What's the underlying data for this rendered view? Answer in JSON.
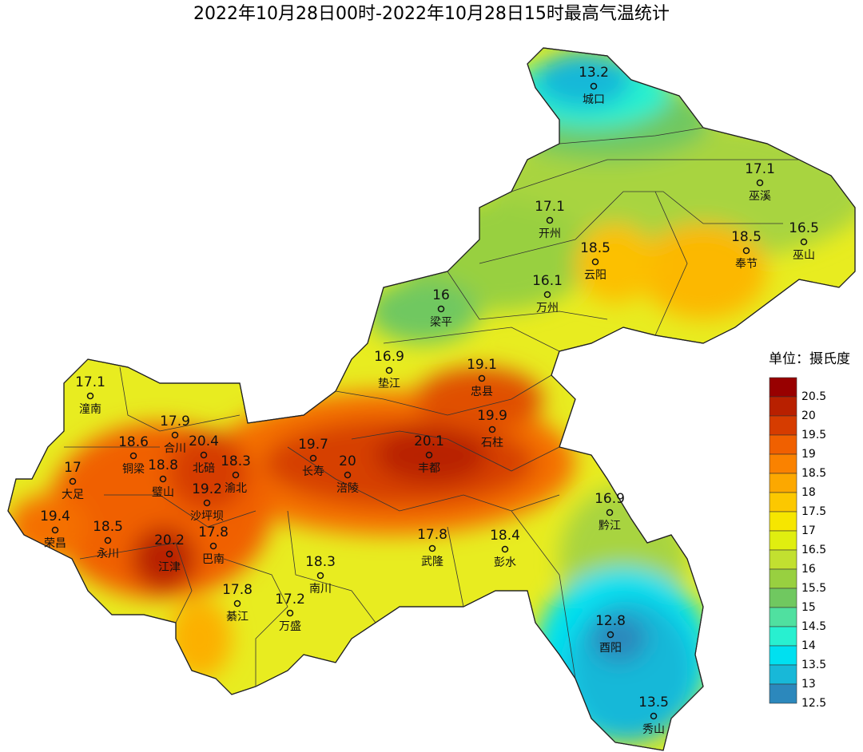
{
  "title": "2022年10月28日00时-2022年10月28日15时最高气温统计",
  "stations": [
    {
      "name": "城口",
      "value": "13.2"
    },
    {
      "name": "巫溪",
      "value": "17.1"
    },
    {
      "name": "开州",
      "value": "17.1"
    },
    {
      "name": "巫山",
      "value": "16.5"
    },
    {
      "name": "云阳",
      "value": "18.5"
    },
    {
      "name": "奉节",
      "value": "18.5"
    },
    {
      "name": "万州",
      "value": "16.1"
    },
    {
      "name": "梁平",
      "value": "16"
    },
    {
      "name": "垫江",
      "value": "16.9"
    },
    {
      "name": "忠县",
      "value": "19.1"
    },
    {
      "name": "潼南",
      "value": "17.1"
    },
    {
      "name": "石柱",
      "value": "19.9"
    },
    {
      "name": "合川",
      "value": "17.9"
    },
    {
      "name": "北碚",
      "value": "20.4"
    },
    {
      "name": "铜梁",
      "value": "18.6"
    },
    {
      "name": "长寿",
      "value": "19.7"
    },
    {
      "name": "涪陵",
      "value": "20"
    },
    {
      "name": "丰都",
      "value": "20.1"
    },
    {
      "name": "渝北",
      "value": "18.3"
    },
    {
      "name": "大足",
      "value": "17"
    },
    {
      "name": "璧山",
      "value": "18.8"
    },
    {
      "name": "沙坪坝",
      "value": "19.2"
    },
    {
      "name": "荣昌",
      "value": "19.4"
    },
    {
      "name": "永川",
      "value": "18.5"
    },
    {
      "name": "黔江",
      "value": "16.9"
    },
    {
      "name": "巴南",
      "value": "17.8"
    },
    {
      "name": "江津",
      "value": "20.2"
    },
    {
      "name": "武隆",
      "value": "17.8"
    },
    {
      "name": "彭水",
      "value": "18.4"
    },
    {
      "name": "南川",
      "value": "18.3"
    },
    {
      "name": "綦江",
      "value": "17.8"
    },
    {
      "name": "万盛",
      "value": "17.2"
    },
    {
      "name": "酉阳",
      "value": "12.8"
    },
    {
      "name": "秀山",
      "value": "13.5"
    }
  ],
  "legend": {
    "title": "单位：摄氏度",
    "levels": [
      "20.5",
      "20",
      "19.5",
      "19",
      "18.5",
      "18",
      "17.5",
      "17",
      "16.5",
      "16",
      "15.5",
      "15",
      "14.5",
      "14",
      "13.5",
      "13",
      "12.5"
    ],
    "colors": [
      "#980000",
      "#b82000",
      "#d63c00",
      "#f06000",
      "#fa8200",
      "#fca800",
      "#fcc800",
      "#f6e600",
      "#e0ee10",
      "#c2e030",
      "#98d040",
      "#70c860",
      "#50e0a0",
      "#28f0d0",
      "#00e0f0",
      "#18b8d8",
      "#2c88bc"
    ]
  }
}
